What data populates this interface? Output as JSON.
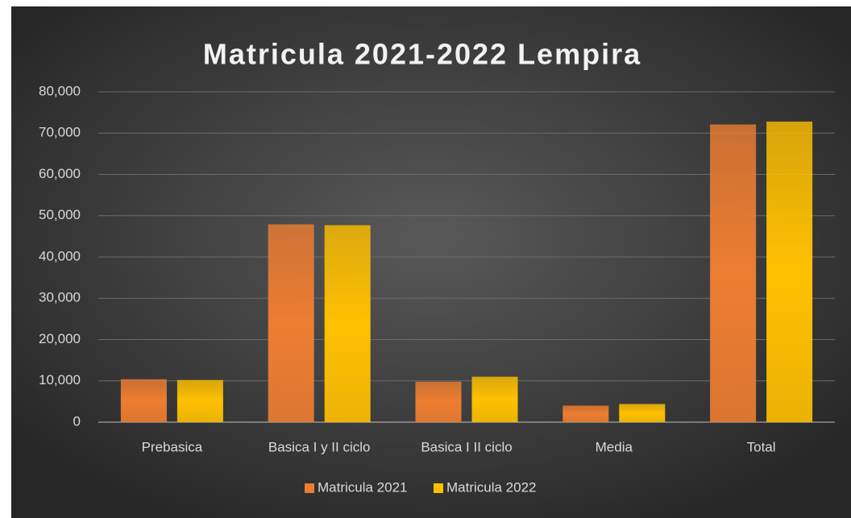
{
  "chart_data": {
    "type": "bar",
    "title": "Matricula 2021-2022 Lempira",
    "categories": [
      "Prebasica",
      "Basica I y II ciclo",
      "Basica I II ciclo",
      "Media",
      "Total"
    ],
    "series": [
      {
        "name": "Matricula 2021",
        "color": "#ed7d31",
        "values": [
          10400,
          47900,
          9800,
          4000,
          72100
        ]
      },
      {
        "name": "Matricula 2022",
        "color": "#ffc000",
        "values": [
          10200,
          47700,
          11000,
          4400,
          72800
        ]
      }
    ],
    "ylim": [
      0,
      80000
    ],
    "yticks": [
      {
        "value": 0,
        "label": "0"
      },
      {
        "value": 10000,
        "label": "10,000"
      },
      {
        "value": 20000,
        "label": "20,000"
      },
      {
        "value": 30000,
        "label": "30,000"
      },
      {
        "value": 40000,
        "label": "40,000"
      },
      {
        "value": 50000,
        "label": "50,000"
      },
      {
        "value": 60000,
        "label": "60,000"
      },
      {
        "value": 70000,
        "label": "70,000"
      },
      {
        "value": 80000,
        "label": "80,000"
      }
    ],
    "grid": true,
    "legend": "bottom"
  }
}
